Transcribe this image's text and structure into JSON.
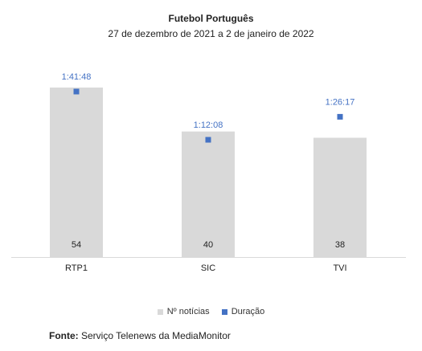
{
  "chart_data": {
    "type": "bar",
    "title": "Futebol Português",
    "subtitle": "27 de dezembro de 2021 a 2 de janeiro de 2022",
    "categories": [
      "RTP1",
      "SIC",
      "TVI"
    ],
    "series": [
      {
        "name": "Nº notícias",
        "values": [
          54,
          40,
          38
        ],
        "color": "#d9d9d9"
      },
      {
        "name": "Duração",
        "values": [
          "1:41:48",
          "1:12:08",
          "1:26:17"
        ],
        "seconds": [
          6108,
          4328,
          5177
        ],
        "color": "#4472c4"
      }
    ],
    "legend_position": "bottom",
    "grid": false
  },
  "source": {
    "label": "Fonte:",
    "text": "Serviço Telenews da MediaMonitor"
  }
}
